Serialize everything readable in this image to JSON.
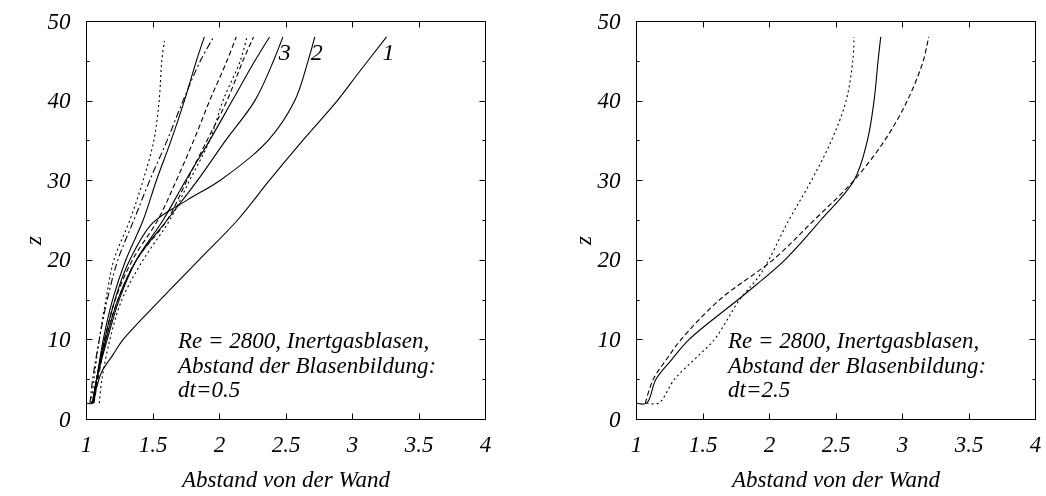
{
  "chart_data": [
    {
      "type": "line",
      "xlabel": "Abstand von der Wand",
      "ylabel": "z",
      "xlim": [
        1,
        4
      ],
      "ylim": [
        0,
        50
      ],
      "xticks": [
        1,
        1.5,
        2,
        2.5,
        3,
        3.5,
        4
      ],
      "yticks": [
        0,
        {
          "value": 5,
          "label": null
        },
        10,
        {
          "value": 15,
          "label": null
        },
        20,
        {
          "value": 25,
          "label": null
        },
        30,
        {
          "value": 35,
          "label": null
        },
        40,
        {
          "value": 45,
          "label": null
        },
        50
      ],
      "annotations": [
        "Re = 2800, Inertgasblasen,",
        "Abstand der Blasenbildung:",
        "dt=0.5"
      ],
      "series": [
        {
          "color": "#000000",
          "line_style": "dotted",
          "x": [
            1.04,
            1.06,
            1.1,
            1.15,
            1.21,
            1.33,
            1.43,
            1.51,
            1.55,
            1.57,
            1.59
          ],
          "values": [
            2,
            5,
            10,
            15,
            20,
            25,
            30,
            35,
            40,
            45,
            47.5
          ]
        },
        {
          "color": "#000000",
          "line_style": "solid",
          "x": [
            1.0,
            1.05,
            1.08,
            1.13,
            1.2,
            1.3,
            1.43,
            1.53,
            1.64,
            1.74,
            1.83,
            1.89
          ],
          "values": [
            2,
            2,
            5,
            10,
            15,
            20,
            25,
            30,
            35,
            40,
            45,
            48
          ]
        },
        {
          "color": "#000000",
          "line_style": "dashdot",
          "x": [
            1.03,
            1.05,
            1.1,
            1.16,
            1.24,
            1.36,
            1.48,
            1.61,
            1.73,
            1.86,
            1.96
          ],
          "values": [
            2,
            5,
            10,
            15,
            20,
            25,
            30,
            35,
            40,
            45,
            48
          ]
        },
        {
          "color": "#000000",
          "line_style": "dashed",
          "x": [
            1.05,
            1.08,
            1.14,
            1.22,
            1.35,
            1.54,
            1.68,
            1.81,
            1.93,
            2.06,
            2.13
          ],
          "values": [
            2,
            5,
            10,
            15,
            20,
            25,
            30,
            35,
            40,
            45,
            48
          ]
        },
        {
          "color": "#000000",
          "line_style": "dotted",
          "x": [
            1.1,
            1.12,
            1.18,
            1.27,
            1.43,
            1.63,
            1.78,
            1.93,
            2.03,
            2.16,
            2.21
          ],
          "values": [
            2,
            5,
            10,
            15,
            20,
            25,
            30,
            35,
            40,
            45,
            48
          ]
        },
        {
          "color": "#000000",
          "line_style": "dashed",
          "x": [
            1.06,
            1.09,
            1.15,
            1.24,
            1.38,
            1.61,
            1.76,
            1.91,
            2.06,
            2.18,
            2.26
          ],
          "values": [
            2,
            5,
            10,
            15,
            20,
            25,
            30,
            35,
            40,
            45,
            48
          ]
        },
        {
          "color": "#000000",
          "line_style": "solid",
          "x": [
            1.05,
            1.08,
            1.16,
            1.25,
            1.38,
            1.58,
            1.75,
            1.93,
            2.1,
            2.27,
            2.38
          ],
          "values": [
            2,
            5,
            10,
            15,
            20,
            25,
            30,
            35,
            40,
            45,
            48
          ]
        },
        {
          "name": "3",
          "color": "#000000",
          "line_style": "solid",
          "x": [
            1.05,
            1.08,
            1.15,
            1.24,
            1.38,
            1.61,
            1.84,
            2.05,
            2.27,
            2.41,
            2.48
          ],
          "values": [
            2,
            5,
            10,
            15,
            20,
            25,
            30,
            35,
            40,
            45,
            48
          ]
        },
        {
          "name": "2",
          "color": "#000000",
          "line_style": "solid",
          "x": [
            1.05,
            1.08,
            1.14,
            1.24,
            1.33,
            1.5,
            1.76,
            2.01,
            2.37,
            2.57,
            2.67,
            2.72
          ],
          "values": [
            2,
            5,
            10,
            16.2,
            20,
            24.6,
            27.5,
            30,
            35,
            40,
            45,
            48
          ]
        },
        {
          "name": "1",
          "color": "#000000",
          "line_style": "solid",
          "x": [
            1.05,
            1.08,
            1.12,
            1.2,
            1.28,
            1.56,
            1.85,
            2.14,
            2.38,
            2.63,
            2.89,
            3.05,
            3.26
          ],
          "values": [
            2,
            4,
            6,
            8,
            10,
            15,
            20,
            25,
            30,
            35,
            40,
            43.5,
            48
          ]
        }
      ]
    },
    {
      "type": "line",
      "xlabel": "Abstand von der Wand",
      "ylabel": "z",
      "xlim": [
        1,
        4
      ],
      "ylim": [
        0,
        50
      ],
      "xticks": [
        1,
        1.5,
        2,
        2.5,
        3,
        3.5,
        4
      ],
      "yticks": [
        0,
        {
          "value": 5,
          "label": null
        },
        10,
        {
          "value": 15,
          "label": null
        },
        20,
        {
          "value": 25,
          "label": null
        },
        30,
        {
          "value": 35,
          "label": null
        },
        40,
        {
          "value": 45,
          "label": null
        },
        50
      ],
      "annotations": [
        "Re = 2800, Inertgasblasen,",
        "Abstand der Blasenbildung:",
        "dt=2.5"
      ],
      "series": [
        {
          "color": "#000000",
          "line_style": "solid",
          "x": [
            1.0,
            1.08,
            1.15,
            1.27,
            1.4,
            1.82,
            2.12,
            2.39,
            2.64,
            2.74,
            2.79,
            2.82,
            2.84
          ],
          "values": [
            2,
            2,
            5,
            7.5,
            10,
            15.7,
            20,
            25,
            30,
            35,
            40,
            45,
            48
          ]
        },
        {
          "color": "#000000",
          "line_style": "dashed",
          "x": [
            1.07,
            1.13,
            1.23,
            1.34,
            1.63,
            2.03,
            2.34,
            2.64,
            2.87,
            3.04,
            3.16,
            3.2
          ],
          "values": [
            2,
            5,
            7.5,
            10,
            15,
            20,
            25,
            30,
            35,
            40,
            45,
            48
          ]
        },
        {
          "color": "#000000",
          "line_style": "dotted",
          "x": [
            1.08,
            1.17,
            1.29,
            1.44,
            1.59,
            1.78,
            1.94,
            2.15,
            2.32,
            2.47,
            2.58,
            2.63,
            2.64
          ],
          "values": [
            2,
            2,
            5,
            7.5,
            10,
            15,
            18.3,
            25,
            30,
            35,
            40,
            45,
            48
          ]
        }
      ]
    }
  ]
}
